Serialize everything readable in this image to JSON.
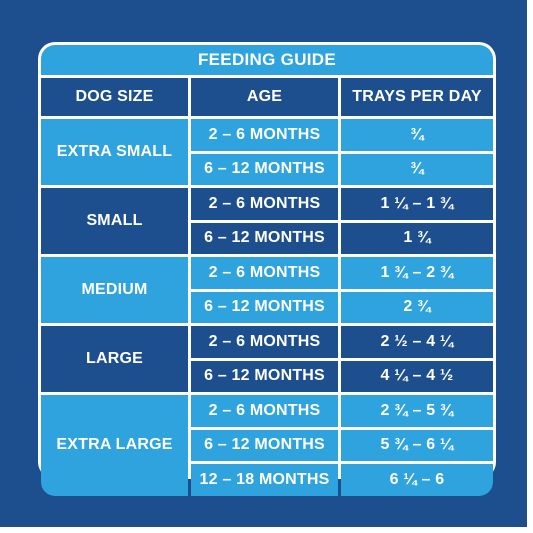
{
  "title": "FEEDING GUIDE",
  "headers": [
    "DOG SIZE",
    "AGE",
    "TRAYS PER DAY"
  ],
  "groups": [
    {
      "size": "EXTRA SMALL",
      "rows": [
        {
          "age": "2 – 6 MONTHS",
          "trays": "¾"
        },
        {
          "age": "6 – 12 MONTHS",
          "trays": "¾"
        }
      ]
    },
    {
      "size": "SMALL",
      "rows": [
        {
          "age": "2 – 6 MONTHS",
          "trays": "1 ¼ – 1 ¾"
        },
        {
          "age": "6 – 12 MONTHS",
          "trays": "1 ¾"
        }
      ]
    },
    {
      "size": "MEDIUM",
      "rows": [
        {
          "age": "2 – 6 MONTHS",
          "trays": "1 ¾ – 2 ¾"
        },
        {
          "age": "6 – 12 MONTHS",
          "trays": "2 ¾"
        }
      ]
    },
    {
      "size": "LARGE",
      "rows": [
        {
          "age": "2 – 6 MONTHS",
          "trays": "2 ½ – 4 ¼"
        },
        {
          "age": "6 – 12 MONTHS",
          "trays": "4 ¼ – 4 ½"
        }
      ]
    },
    {
      "size": "EXTRA LARGE",
      "rows": [
        {
          "age": "2 – 6 MONTHS",
          "trays": "2 ¾ – 5 ¾"
        },
        {
          "age": "6 – 12 MONTHS",
          "trays": "5 ¾ – 6 ¼"
        },
        {
          "age": "12 – 18 MONTHS",
          "trays": "6 ¼ – 6"
        }
      ]
    }
  ],
  "colors": {
    "dark": "#1d4f8e",
    "light": "#2ea3dd"
  }
}
